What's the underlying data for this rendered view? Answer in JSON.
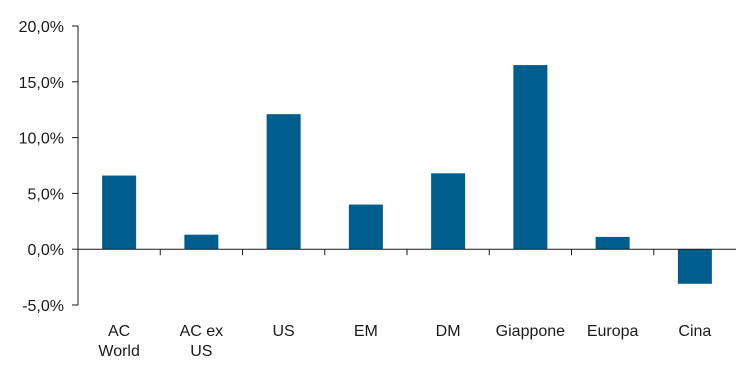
{
  "chart_data": {
    "type": "bar",
    "title": "",
    "xlabel": "",
    "ylabel": "",
    "categories": [
      [
        "AC",
        "World"
      ],
      [
        "AC ex",
        "US"
      ],
      [
        "US"
      ],
      [
        "EM"
      ],
      [
        "DM"
      ],
      [
        "Giappone"
      ],
      [
        "Europa"
      ],
      [
        "Cina"
      ]
    ],
    "values": [
      6.6,
      1.3,
      12.1,
      4.0,
      6.8,
      16.5,
      1.1,
      -3.1
    ],
    "ylim": [
      -5,
      20
    ],
    "yticks": [
      20,
      15,
      10,
      5,
      0,
      -5
    ],
    "ytick_labels": [
      "20,0%",
      "15,0%",
      "10,0%",
      "5,0%",
      "0,0%",
      "-5,0%"
    ],
    "grid": false,
    "legend": "none",
    "colors": {
      "bar": "#005E8F",
      "axis": "#1a1a1a",
      "text": "#1a1a1a"
    }
  }
}
